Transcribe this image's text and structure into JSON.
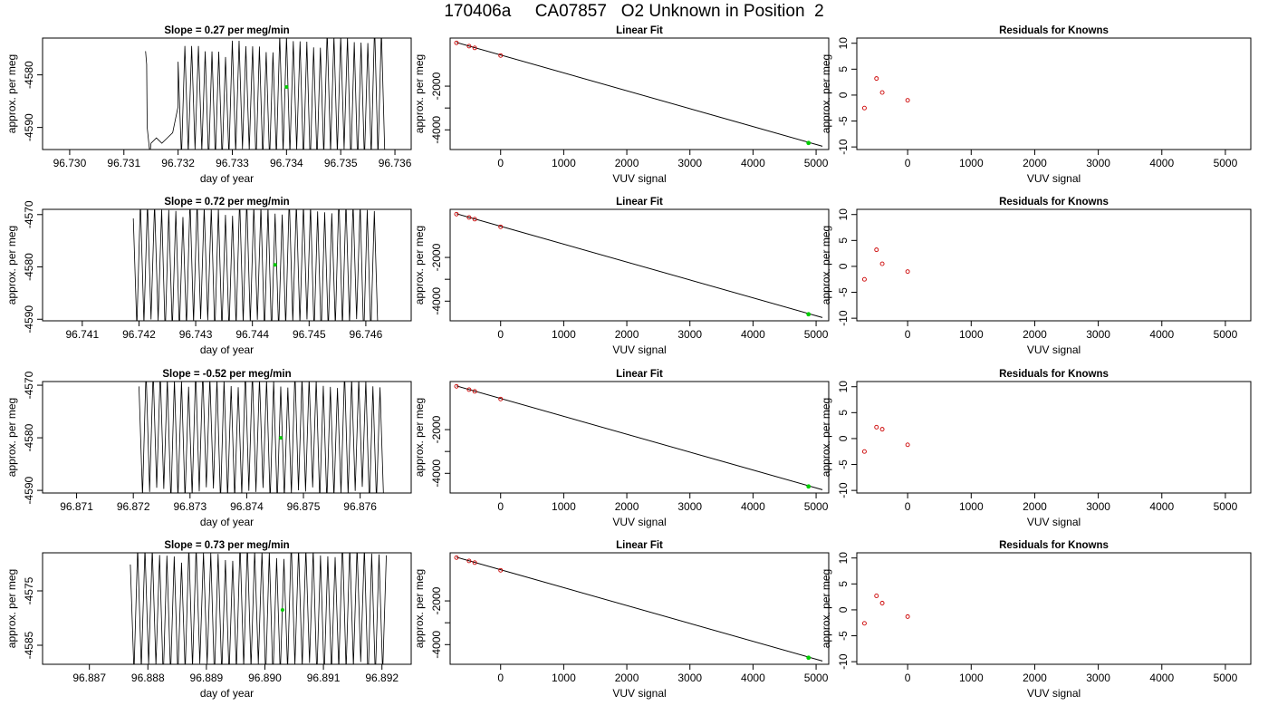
{
  "page_title": "170406a     CA07857   O2 Unknown in Position  2",
  "colors": {
    "trace": "#000000",
    "unknown_point": "#00cc00",
    "known_point": "#cc0000",
    "frame": "#000000"
  },
  "chart_data": [
    {
      "row": 1,
      "type": "line",
      "title": "Slope =  0.27  per meg/min",
      "xlabel": "day of year",
      "ylabel": "approx. per meg",
      "xlim": [
        96.7295,
        96.7363
      ],
      "ylim": [
        -4594.2,
        -4573.0
      ],
      "xticks": [
        "96.730",
        "96.731",
        "96.732",
        "96.733",
        "96.734",
        "96.735",
        "96.736"
      ],
      "yticks": [
        "-4580",
        "-4590"
      ],
      "trace": {
        "start": 96.7314,
        "end": 96.7358,
        "osc_start": 96.732,
        "pre_points": [
          [
            96.7314,
            -4575.5
          ],
          [
            96.73142,
            -4578.0
          ],
          [
            96.73143,
            -4590
          ],
          [
            96.73148,
            -4595
          ],
          [
            96.7315,
            -4593
          ],
          [
            96.7316,
            -4592
          ],
          [
            96.7317,
            -4593
          ],
          [
            96.7318,
            -4592
          ],
          [
            96.7319,
            -4591
          ],
          [
            96.732,
            -4586
          ]
        ],
        "center_start": -4585.5,
        "center_end": -4584.0,
        "amp_start": 10.0,
        "amp_end": 12.0,
        "period": 6.25e-05
      },
      "unknown_point": [
        96.734,
        -4582.3
      ]
    },
    {
      "row": 2,
      "type": "line",
      "title": "Slope =  0.72  per meg/min",
      "xlabel": "day of year",
      "ylabel": "approx. per meg",
      "xlim": [
        96.7403,
        96.7468
      ],
      "ylim": [
        -4590.3,
        -4569.0
      ],
      "xticks": [
        "96.741",
        "96.742",
        "96.743",
        "96.744",
        "96.745",
        "96.746"
      ],
      "yticks": [
        "-4570",
        "-4580",
        "-4590"
      ],
      "trace": {
        "start": 96.7419,
        "end": 96.7462,
        "osc_start": 96.7419,
        "pre_points": [],
        "center_start": -4580.0,
        "center_end": -4580.0,
        "amp_start": 11.5,
        "amp_end": 12.0,
        "period": 6.25e-05
      },
      "unknown_point": [
        96.7444,
        -4579.6
      ]
    },
    {
      "row": 3,
      "type": "line",
      "title": "Slope =  -0.52  per meg/min",
      "xlabel": "day of year",
      "ylabel": "approx. per meg",
      "xlim": [
        96.8704,
        96.8769
      ],
      "ylim": [
        -4590.5,
        -4569.3
      ],
      "xticks": [
        "96.871",
        "96.872",
        "96.873",
        "96.874",
        "96.875",
        "96.876"
      ],
      "yticks": [
        "-4570",
        "-4580",
        "-4590"
      ],
      "trace": {
        "start": 96.8721,
        "end": 96.8764,
        "osc_start": 96.8721,
        "pre_points": [],
        "center_start": -4579.5,
        "center_end": -4580.2,
        "amp_start": 11.5,
        "amp_end": 11.0,
        "period": 6.25e-05
      },
      "unknown_point": [
        96.8746,
        -4580.0
      ]
    },
    {
      "row": 4,
      "type": "line",
      "title": "Slope =  0.73  per meg/min",
      "xlabel": "day of year",
      "ylabel": "approx. per meg",
      "xlim": [
        96.8862,
        96.8925
      ],
      "ylim": [
        -4588.5,
        -4568.0
      ],
      "xticks": [
        "96.887",
        "96.888",
        "96.889",
        "96.890",
        "96.891",
        "96.892"
      ],
      "yticks": [
        "-4575",
        "-4585"
      ],
      "trace": {
        "start": 96.8877,
        "end": 96.8921,
        "osc_start": 96.8877,
        "pre_points": [],
        "center_start": -4579.0,
        "center_end": -4578.5,
        "amp_start": 11.0,
        "amp_end": 11.5,
        "period": 6.25e-05
      },
      "unknown_point": [
        96.8903,
        -4578.5
      ]
    },
    {
      "row": 1,
      "type": "scatter",
      "title": "Linear Fit",
      "xlabel": "VUV signal",
      "ylabel": "approx. per meg",
      "xlim": [
        -800,
        5200
      ],
      "ylim": [
        -4900,
        200
      ],
      "xticks": [
        0,
        1000,
        2000,
        3000,
        4000,
        5000
      ],
      "yticks": [
        -2000,
        -3000,
        -4000
      ],
      "ytick_labels": [
        "-2000",
        "",
        "-4000"
      ],
      "fit_line": [
        [
          -700,
          0
        ],
        [
          5100,
          -4750
        ]
      ],
      "knowns": [
        [
          -700,
          -20
        ],
        [
          -500,
          -170
        ],
        [
          -410,
          -250
        ],
        [
          0,
          -600
        ]
      ],
      "unknown": [
        4880,
        -4600
      ]
    },
    {
      "row": 2,
      "type": "scatter",
      "title": "Linear Fit",
      "xlabel": "VUV signal",
      "ylabel": "approx. per meg",
      "xlim": [
        -800,
        5200
      ],
      "ylim": [
        -4900,
        200
      ],
      "xticks": [
        0,
        1000,
        2000,
        3000,
        4000,
        5000
      ],
      "yticks": [
        -2000,
        -3000,
        -4000
      ],
      "ytick_labels": [
        "-2000",
        "",
        "-4000"
      ],
      "fit_line": [
        [
          -700,
          0
        ],
        [
          5100,
          -4750
        ]
      ],
      "knowns": [
        [
          -700,
          -20
        ],
        [
          -500,
          -170
        ],
        [
          -410,
          -250
        ],
        [
          0,
          -600
        ]
      ],
      "unknown": [
        4880,
        -4600
      ]
    },
    {
      "row": 3,
      "type": "scatter",
      "title": "Linear Fit",
      "xlabel": "VUV signal",
      "ylabel": "approx. per meg",
      "xlim": [
        -800,
        5200
      ],
      "ylim": [
        -4900,
        200
      ],
      "xticks": [
        0,
        1000,
        2000,
        3000,
        4000,
        5000
      ],
      "yticks": [
        -2000,
        -3000,
        -4000
      ],
      "ytick_labels": [
        "-2000",
        "",
        "-4000"
      ],
      "fit_line": [
        [
          -700,
          0
        ],
        [
          5100,
          -4750
        ]
      ],
      "knowns": [
        [
          -700,
          -20
        ],
        [
          -500,
          -170
        ],
        [
          -410,
          -250
        ],
        [
          0,
          -600
        ]
      ],
      "unknown": [
        4880,
        -4600
      ]
    },
    {
      "row": 4,
      "type": "scatter",
      "title": "Linear Fit",
      "xlabel": "VUV signal",
      "ylabel": "approx. per meg",
      "xlim": [
        -800,
        5200
      ],
      "ylim": [
        -4900,
        200
      ],
      "xticks": [
        0,
        1000,
        2000,
        3000,
        4000,
        5000
      ],
      "yticks": [
        -2000,
        -3000,
        -4000
      ],
      "ytick_labels": [
        "-2000",
        "",
        "-4000"
      ],
      "fit_line": [
        [
          -700,
          0
        ],
        [
          5100,
          -4750
        ]
      ],
      "knowns": [
        [
          -700,
          -20
        ],
        [
          -500,
          -170
        ],
        [
          -410,
          -250
        ],
        [
          0,
          -600
        ]
      ],
      "unknown": [
        4880,
        -4600
      ]
    },
    {
      "row": 1,
      "type": "scatter",
      "title": "Residuals for Knowns",
      "xlabel": "VUV signal",
      "ylabel": "approx. per meg",
      "xlim": [
        -800,
        5400
      ],
      "ylim": [
        -10.5,
        11.0
      ],
      "xticks": [
        0,
        1000,
        2000,
        3000,
        4000,
        5000
      ],
      "yticks": [
        10,
        5,
        0,
        -5,
        -10
      ],
      "points": [
        [
          -680,
          -2.5
        ],
        [
          -490,
          3.2
        ],
        [
          -400,
          0.5
        ],
        [
          0,
          -1.0
        ]
      ]
    },
    {
      "row": 2,
      "type": "scatter",
      "title": "Residuals for Knowns",
      "xlabel": "VUV signal",
      "ylabel": "approx. per meg",
      "xlim": [
        -800,
        5400
      ],
      "ylim": [
        -10.5,
        11.0
      ],
      "xticks": [
        0,
        1000,
        2000,
        3000,
        4000,
        5000
      ],
      "yticks": [
        10,
        5,
        0,
        -5,
        -10
      ],
      "points": [
        [
          -680,
          -2.5
        ],
        [
          -490,
          3.2
        ],
        [
          -400,
          0.5
        ],
        [
          0,
          -1.0
        ]
      ]
    },
    {
      "row": 3,
      "type": "scatter",
      "title": "Residuals for Knowns",
      "xlabel": "VUV signal",
      "ylabel": "approx. per meg",
      "xlim": [
        -800,
        5400
      ],
      "ylim": [
        -10.5,
        11.0
      ],
      "xticks": [
        0,
        1000,
        2000,
        3000,
        4000,
        5000
      ],
      "yticks": [
        10,
        5,
        0,
        -5,
        -10
      ],
      "points": [
        [
          -680,
          -2.5
        ],
        [
          -490,
          2.2
        ],
        [
          -400,
          1.8
        ],
        [
          0,
          -1.2
        ]
      ]
    },
    {
      "row": 4,
      "type": "scatter",
      "title": "Residuals for Knowns",
      "xlabel": "VUV signal",
      "ylabel": "approx. per meg",
      "xlim": [
        -800,
        5400
      ],
      "ylim": [
        -10.5,
        11.0
      ],
      "xticks": [
        0,
        1000,
        2000,
        3000,
        4000,
        5000
      ],
      "yticks": [
        10,
        5,
        0,
        -5,
        -10
      ],
      "points": [
        [
          -680,
          -2.6
        ],
        [
          -490,
          2.7
        ],
        [
          -400,
          1.3
        ],
        [
          0,
          -1.3
        ]
      ]
    }
  ]
}
